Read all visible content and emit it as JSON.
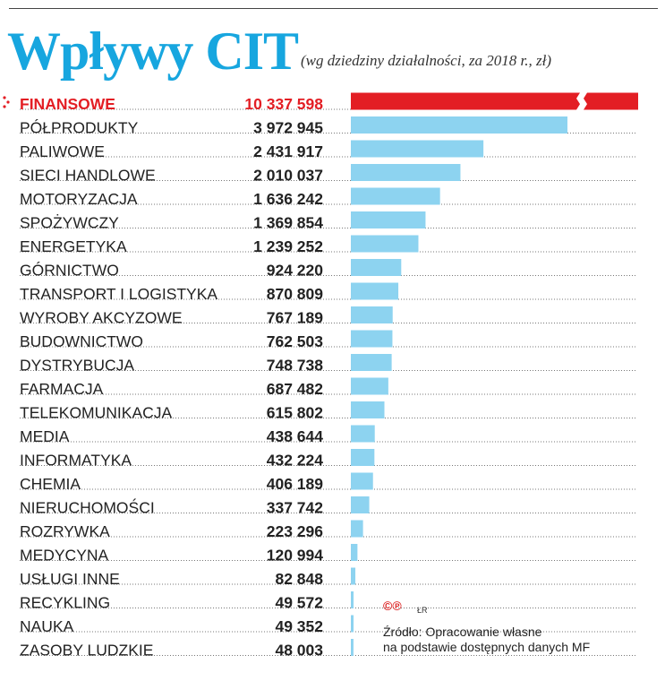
{
  "title": "Wpływy CIT",
  "subtitle": "(wg dziedziny działalności, za 2018 r., zł)",
  "colors": {
    "title": "#17a6df",
    "bar": "#8dd3f0",
    "highlight": "#e31e24",
    "text": "#222222"
  },
  "chart_data": {
    "type": "bar",
    "orientation": "horizontal",
    "highlight_index": 0,
    "broken_axis_bar_index": 0,
    "categories": [
      "FINANSOWE",
      "PÓŁPRODUKTY",
      "PALIWOWE",
      "SIECI HANDLOWE",
      "MOTORYZACJA",
      "SPOŻYWCZY",
      "ENERGETYKA",
      "GÓRNICTWO",
      "TRANSPORT I LOGISTYKA",
      "WYROBY AKCYZOWE",
      "BUDOWNICTWO",
      "DYSTRYBUCJA",
      "FARMACJA",
      "TELEKOMUNIKACJA",
      "MEDIA",
      "INFORMATYKA",
      "CHEMIA",
      "NIERUCHOMOŚCI",
      "ROZRYWKA",
      "MEDYCYNA",
      "USŁUGI INNE",
      "RECYKLING",
      "NAUKA",
      "ZASOBY LUDZKIE"
    ],
    "values": [
      10337598,
      3972945,
      2431917,
      2010037,
      1636242,
      1369854,
      1239252,
      924220,
      870809,
      767189,
      762503,
      748738,
      687482,
      615802,
      438644,
      432224,
      406189,
      337742,
      223296,
      120994,
      82848,
      49572,
      49352,
      48003
    ],
    "value_labels": [
      "10 337 598",
      "3 972 945",
      "2 431 917",
      "2 010 037",
      "1 636 242",
      "1 369 854",
      "1 239 252",
      "924 220",
      "870 809",
      "767 189",
      "762 503",
      "748 738",
      "687 482",
      "615 802",
      "438 644",
      "432 224",
      "406 189",
      "337 742",
      "223 296",
      "120 994",
      "82 848",
      "49 572",
      "49 352",
      "48 003"
    ]
  },
  "footer": {
    "credit_symbols": "©℗",
    "credit_author": "ŁR",
    "source_line1": "Źródło: Opracowanie własne",
    "source_line2": "na podstawie dostępnych danych MF"
  }
}
